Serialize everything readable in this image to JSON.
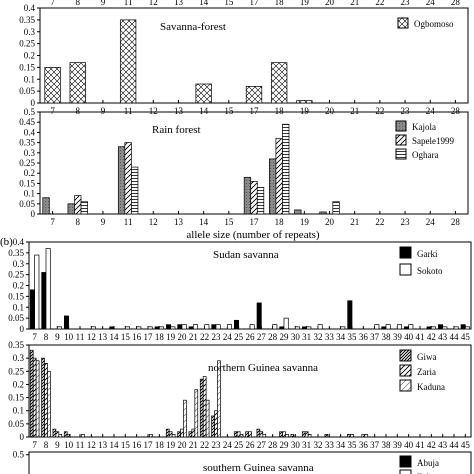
{
  "chart_data": [
    {
      "type": "bar",
      "panel_label": "",
      "subtitle": "Savanna-forest",
      "categories": [
        "7",
        "8",
        "9",
        "11",
        "12",
        "13",
        "14",
        "15",
        "17",
        "18",
        "19",
        "20",
        "21",
        "22",
        "23",
        "24",
        "28"
      ],
      "ylim": [
        0,
        0.4
      ],
      "yticks": [
        "0",
        "0.05",
        "0.1",
        "0.15",
        "0.2",
        "0.25",
        "0.3",
        "0.35",
        "0.4"
      ],
      "top_tick_labels": [
        "7",
        "8",
        "9",
        "11",
        "12",
        "13",
        "14",
        "15",
        "17",
        "18",
        "19",
        "20",
        "21",
        "22",
        "23",
        "24",
        "28"
      ],
      "series": [
        {
          "name": "Ogbomoso",
          "pattern": "cross",
          "values": [
            0.15,
            0.17,
            0,
            0.35,
            0,
            0,
            0.08,
            0,
            0.07,
            0.17,
            0.01,
            0,
            0,
            0,
            0,
            0,
            0
          ]
        }
      ],
      "legend_placement": "top-right"
    },
    {
      "type": "bar",
      "panel_label": "",
      "subtitle": "Rain forest",
      "categories": [
        "7",
        "8",
        "9",
        "11",
        "12",
        "13",
        "14",
        "15",
        "17",
        "18",
        "19",
        "20",
        "21",
        "22",
        "23",
        "24",
        "28"
      ],
      "ylim": [
        0,
        0.5
      ],
      "yticks": [
        "0",
        "0.05",
        "0.1",
        "0.15",
        "0.2",
        "0.25",
        "0.3",
        "0.35",
        "0.4",
        "0.45",
        "0.5"
      ],
      "xlabel": "allele size (number of repeats)",
      "series": [
        {
          "name": "Kajola",
          "pattern": "gray",
          "values": [
            0.08,
            0.05,
            0,
            0.33,
            0,
            0,
            0,
            0,
            0.18,
            0.27,
            0.02,
            0.01,
            0,
            0,
            0,
            0,
            0
          ]
        },
        {
          "name": "Sapele1999",
          "pattern": "diag",
          "values": [
            0,
            0.09,
            0,
            0.35,
            0,
            0,
            0,
            0,
            0.16,
            0.37,
            0,
            0,
            0,
            0,
            0,
            0,
            0
          ]
        },
        {
          "name": "Oghara",
          "pattern": "hlines",
          "values": [
            0,
            0.06,
            0,
            0.23,
            0,
            0,
            0,
            0,
            0.13,
            0.44,
            0,
            0.06,
            0,
            0,
            0,
            0,
            0
          ]
        }
      ],
      "legend_placement": "top-right"
    },
    {
      "type": "bar",
      "panel_label": "(b)",
      "subtitle": "Sudan savanna",
      "categories": [
        "7",
        "8",
        "9",
        "10",
        "11",
        "12",
        "13",
        "14",
        "15",
        "16",
        "17",
        "18",
        "19",
        "20",
        "21",
        "22",
        "23",
        "24",
        "25",
        "26",
        "27",
        "28",
        "29",
        "30",
        "31",
        "32",
        "33",
        "34",
        "35",
        "36",
        "37",
        "38",
        "39",
        "40",
        "41",
        "42",
        "43",
        "44",
        "45"
      ],
      "ylim": [
        0,
        0.4
      ],
      "yticks": [
        "0",
        "0.05",
        "0.1",
        "0.15",
        "0.2",
        "0.25",
        "0.3",
        "0.35",
        "0.4"
      ],
      "xtick_labels": [
        "7",
        "8",
        "9",
        "10",
        "11",
        "12",
        "13",
        "14",
        "15",
        "16",
        "17",
        "18",
        "19",
        "20",
        "21",
        "22",
        "23",
        "24",
        "25",
        "26",
        "27",
        "28",
        "29",
        "30",
        "31",
        "32",
        "33",
        "34",
        "35",
        "36",
        "37",
        "38",
        "39",
        "40",
        "41",
        "42",
        "43",
        "44",
        "45"
      ],
      "series": [
        {
          "name": "Garki",
          "pattern": "black",
          "values": [
            0.18,
            0.26,
            0,
            0.06,
            0,
            0,
            0,
            0.01,
            0,
            0,
            0,
            0.01,
            0.02,
            0.02,
            0.01,
            0,
            0.02,
            0,
            0.04,
            0,
            0.12,
            0,
            0.01,
            0,
            0.01,
            0,
            0,
            0,
            0.13,
            0,
            0,
            0.01,
            0,
            0.01,
            0,
            0.01,
            0.02,
            0,
            0.02
          ]
        },
        {
          "name": "Sokoto",
          "pattern": "white",
          "values": [
            0.34,
            0.37,
            0.01,
            0,
            0,
            0.01,
            0,
            0,
            0.01,
            0.01,
            0.01,
            0.01,
            0.01,
            0.02,
            0.02,
            0.02,
            0.02,
            0.02,
            0,
            0.02,
            0,
            0.02,
            0.05,
            0.01,
            0.01,
            0.02,
            0,
            0.01,
            0,
            0,
            0.02,
            0.02,
            0.02,
            0.02,
            0,
            0.01,
            0.01,
            0.01,
            0.01
          ]
        }
      ],
      "legend_placement": "top-right"
    },
    {
      "type": "bar",
      "panel_label": "",
      "subtitle": "northern Guinea savanna",
      "categories": [
        "7",
        "8",
        "9",
        "10",
        "11",
        "12",
        "13",
        "14",
        "15",
        "16",
        "17",
        "18",
        "19",
        "20",
        "21",
        "22",
        "23",
        "24",
        "25",
        "26",
        "27",
        "28",
        "29",
        "30",
        "31",
        "32",
        "33",
        "34",
        "35",
        "36",
        "37",
        "38",
        "39",
        "40",
        "41",
        "42",
        "43",
        "44",
        "45"
      ],
      "ylim": [
        0,
        0.35
      ],
      "yticks": [
        "0",
        "0.05",
        "0.1",
        "0.15",
        "0.2",
        "0.25",
        "0.3",
        "0.35"
      ],
      "xtick_labels": [
        "7",
        "8",
        "9",
        "10",
        "11",
        "12",
        "13",
        "14",
        "15",
        "16",
        "17",
        "18",
        "19",
        "20",
        "21",
        "22",
        "23",
        "24",
        "25",
        "26",
        "27",
        "28",
        "29",
        "30",
        "31",
        "32",
        "33",
        "34",
        "35",
        "36",
        "37",
        "38",
        "39",
        "40",
        "41",
        "42",
        "43",
        "44",
        "45"
      ],
      "series": [
        {
          "name": "Giwa",
          "pattern": "dense-diag",
          "values": [
            0.33,
            0.3,
            0.03,
            0.02,
            0,
            0,
            0,
            0,
            0,
            0,
            0,
            0,
            0.03,
            0.02,
            0.02,
            0.22,
            0.08,
            0,
            0.02,
            0.02,
            0.03,
            0,
            0.02,
            0.01,
            0.02,
            0,
            0.01,
            0,
            0.01,
            0,
            0,
            0,
            0,
            0,
            0,
            0,
            0,
            0,
            0
          ]
        },
        {
          "name": "Zaria",
          "pattern": "diag",
          "values": [
            0.3,
            0.28,
            0.02,
            0.01,
            0,
            0,
            0,
            0,
            0,
            0,
            0,
            0,
            0.02,
            0.03,
            0.03,
            0.23,
            0.1,
            0,
            0.02,
            0.02,
            0.02,
            0,
            0.02,
            0,
            0.02,
            0,
            0,
            0,
            0.01,
            0.01,
            0,
            0,
            0,
            0,
            0,
            0,
            0,
            0,
            0
          ]
        },
        {
          "name": "Kaduna",
          "pattern": "light-diag",
          "values": [
            0.29,
            0.25,
            0.01,
            0,
            0.01,
            0,
            0,
            0,
            0,
            0,
            0.01,
            0,
            0.01,
            0.14,
            0.18,
            0.14,
            0.29,
            0,
            0.01,
            0,
            0.01,
            0,
            0.01,
            0,
            0.01,
            0,
            0,
            0,
            0,
            0.01,
            0,
            0,
            0,
            0,
            0,
            0,
            0,
            0,
            0
          ]
        }
      ],
      "legend_placement": "top-right"
    },
    {
      "type": "bar",
      "panel_label": "",
      "subtitle": "southern Guinea savanna",
      "ylim": [
        0,
        0.55
      ],
      "yticks": [
        "0.5"
      ],
      "series": [
        {
          "name": "Abuja",
          "pattern": "black",
          "values": []
        },
        {
          "name": "Ilobu",
          "pattern": "white",
          "values": []
        }
      ],
      "legend_placement": "top-right"
    }
  ]
}
